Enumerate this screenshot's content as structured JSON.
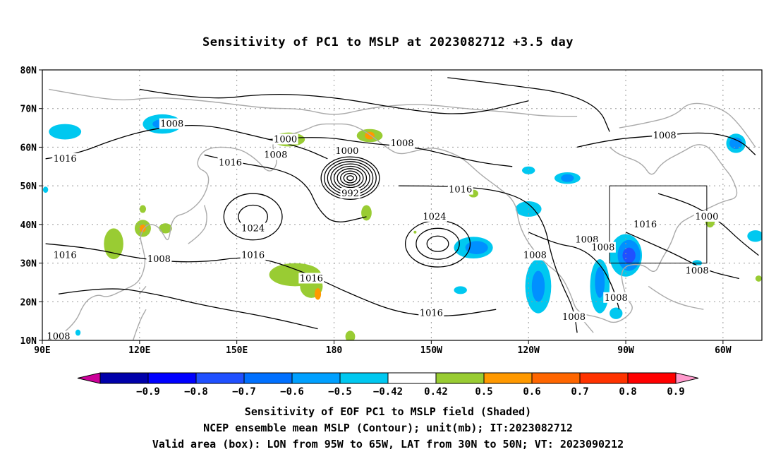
{
  "title": "Sensitivity of PC1 to MSLP at 2023082712 +3.5 day",
  "footer": {
    "line1": "Sensitivity of EOF PC1 to MSLP field (Shaded)",
    "line2": "NCEP ensemble mean MSLP (Contour); unit(mb); IT:2023082712",
    "line3": "Valid area (box): LON from 95W to 65W, LAT from 30N to 50N; VT: 2023090212"
  },
  "map": {
    "lon_range": [
      90,
      312
    ],
    "lat_range": [
      10,
      80
    ],
    "lat_ticks": [
      {
        "v": 80,
        "label": "80N"
      },
      {
        "v": 70,
        "label": "70N"
      },
      {
        "v": 60,
        "label": "60N"
      },
      {
        "v": 50,
        "label": "50N"
      },
      {
        "v": 40,
        "label": "40N"
      },
      {
        "v": 30,
        "label": "30N"
      },
      {
        "v": 20,
        "label": "20N"
      },
      {
        "v": 10,
        "label": "10N"
      }
    ],
    "lon_ticks": [
      {
        "v": 90,
        "label": "90E"
      },
      {
        "v": 120,
        "label": "120E"
      },
      {
        "v": 150,
        "label": "150E"
      },
      {
        "v": 180,
        "label": "180"
      },
      {
        "v": 210,
        "label": "150W"
      },
      {
        "v": 240,
        "label": "120W"
      },
      {
        "v": 270,
        "label": "90W"
      },
      {
        "v": 300,
        "label": "60W"
      }
    ],
    "valid_box": {
      "lon": [
        265,
        295
      ],
      "lat": [
        30,
        50
      ]
    },
    "contour_labels": [
      {
        "text": "1008",
        "lon": 130,
        "lat": 66
      },
      {
        "text": "1016",
        "lon": 97,
        "lat": 57
      },
      {
        "text": "1000",
        "lon": 165,
        "lat": 62
      },
      {
        "text": "1008",
        "lon": 162,
        "lat": 58
      },
      {
        "text": "1016",
        "lon": 148,
        "lat": 56
      },
      {
        "text": "1000",
        "lon": 184,
        "lat": 59
      },
      {
        "text": "992",
        "lon": 185,
        "lat": 48
      },
      {
        "text": "1008",
        "lon": 201,
        "lat": 61
      },
      {
        "text": "1016",
        "lon": 219,
        "lat": 49
      },
      {
        "text": "1024",
        "lon": 211,
        "lat": 42
      },
      {
        "text": "1024",
        "lon": 155,
        "lat": 39
      },
      {
        "text": "1016",
        "lon": 97,
        "lat": 32
      },
      {
        "text": "1008",
        "lon": 126,
        "lat": 31
      },
      {
        "text": "1016",
        "lon": 155,
        "lat": 32
      },
      {
        "text": "1016",
        "lon": 173,
        "lat": 26
      },
      {
        "text": "1016",
        "lon": 210,
        "lat": 17
      },
      {
        "text": "1008",
        "lon": 242,
        "lat": 32
      },
      {
        "text": "1008",
        "lon": 258,
        "lat": 36
      },
      {
        "text": "1008",
        "lon": 263,
        "lat": 34
      },
      {
        "text": "1016",
        "lon": 276,
        "lat": 40
      },
      {
        "text": "1008",
        "lon": 282,
        "lat": 63
      },
      {
        "text": "1000",
        "lon": 295,
        "lat": 42
      },
      {
        "text": "1008",
        "lon": 292,
        "lat": 28
      },
      {
        "text": "1008",
        "lon": 267,
        "lat": 21
      },
      {
        "text": "1008",
        "lon": 254,
        "lat": 16
      },
      {
        "text": "1008",
        "lon": 95,
        "lat": 11
      }
    ],
    "low_centers": [
      {
        "lon": 185,
        "lat": 52,
        "rings": 9,
        "rx": 9,
        "ry": 5.5
      }
    ],
    "high_centers": [
      {
        "lon": 155,
        "lat": 42,
        "rings": 2,
        "rx": 9,
        "ry": 6
      },
      {
        "lon": 212,
        "lat": 35,
        "rings": 3,
        "rx": 10,
        "ry": 6
      }
    ],
    "open_contours": [
      [
        [
          91,
          57
        ],
        [
          100,
          58
        ],
        [
          112,
          62
        ],
        [
          125,
          65
        ],
        [
          140,
          66
        ],
        [
          155,
          63
        ],
        [
          170,
          60
        ],
        [
          178,
          57
        ]
      ],
      [
        [
          91,
          35
        ],
        [
          105,
          34
        ],
        [
          120,
          31
        ],
        [
          138,
          30
        ],
        [
          155,
          32
        ],
        [
          170,
          28
        ],
        [
          185,
          22
        ],
        [
          200,
          17
        ],
        [
          215,
          16
        ],
        [
          230,
          18
        ]
      ],
      [
        [
          160,
          62
        ],
        [
          175,
          63
        ],
        [
          190,
          61
        ],
        [
          205,
          60
        ],
        [
          215,
          58
        ],
        [
          225,
          56
        ],
        [
          235,
          55
        ]
      ],
      [
        [
          140,
          58
        ],
        [
          150,
          56
        ],
        [
          165,
          54
        ],
        [
          172,
          50
        ],
        [
          175,
          44
        ],
        [
          180,
          40
        ],
        [
          190,
          42
        ]
      ],
      [
        [
          200,
          50
        ],
        [
          215,
          50
        ],
        [
          230,
          49
        ],
        [
          240,
          46
        ],
        [
          245,
          40
        ],
        [
          247,
          32
        ],
        [
          250,
          25
        ],
        [
          254,
          18
        ],
        [
          255,
          12
        ]
      ],
      [
        [
          255,
          60
        ],
        [
          265,
          62
        ],
        [
          280,
          63
        ],
        [
          295,
          64
        ],
        [
          305,
          62
        ],
        [
          310,
          58
        ]
      ],
      [
        [
          280,
          48
        ],
        [
          288,
          46
        ],
        [
          295,
          43
        ],
        [
          300,
          40
        ],
        [
          305,
          36
        ],
        [
          311,
          32
        ]
      ],
      [
        [
          270,
          38
        ],
        [
          278,
          35
        ],
        [
          286,
          32
        ],
        [
          295,
          28
        ],
        [
          305,
          26
        ]
      ],
      [
        [
          240,
          38
        ],
        [
          248,
          35
        ],
        [
          256,
          34
        ],
        [
          262,
          30
        ],
        [
          266,
          24
        ],
        [
          268,
          18
        ]
      ],
      [
        [
          120,
          75
        ],
        [
          140,
          72
        ],
        [
          160,
          74
        ],
        [
          180,
          73
        ],
        [
          200,
          70
        ],
        [
          220,
          68
        ],
        [
          240,
          72
        ]
      ],
      [
        [
          215,
          78
        ],
        [
          235,
          76
        ],
        [
          252,
          74
        ],
        [
          262,
          70
        ],
        [
          265,
          64
        ]
      ],
      [
        [
          95,
          22
        ],
        [
          110,
          24
        ],
        [
          125,
          22
        ],
        [
          140,
          19
        ],
        [
          160,
          16
        ],
        [
          175,
          13
        ]
      ]
    ],
    "shaded": [
      {
        "lon": 97,
        "lat": 64,
        "rx": 5,
        "ry": 2,
        "color": "#00c8f0"
      },
      {
        "lon": 127,
        "lat": 66,
        "rx": 6,
        "ry": 2.5,
        "color": "#00c8f0"
      },
      {
        "lon": 127,
        "lat": 66,
        "rx": 3,
        "ry": 1.2,
        "color": "#0090ff"
      },
      {
        "lon": 166,
        "lat": 62,
        "rx": 5,
        "ry": 1.8,
        "color": "#99cc33"
      },
      {
        "lon": 191,
        "lat": 63,
        "rx": 4,
        "ry": 1.7,
        "color": "#99cc33"
      },
      {
        "lon": 191,
        "lat": 63,
        "rx": 1.5,
        "ry": 1,
        "color": "#ff9900"
      },
      {
        "lon": 190,
        "lat": 43,
        "rx": 1.6,
        "ry": 2,
        "color": "#99cc33"
      },
      {
        "lon": 205,
        "lat": 38,
        "rx": 0.1,
        "ry": 0.1,
        "color": "#99cc33"
      },
      {
        "lon": 112,
        "lat": 35,
        "rx": 3,
        "ry": 4,
        "color": "#99cc33"
      },
      {
        "lon": 121,
        "lat": 39,
        "rx": 2.5,
        "ry": 2.2,
        "color": "#99cc33"
      },
      {
        "lon": 121,
        "lat": 39,
        "rx": 1,
        "ry": 1,
        "color": "#ff9900"
      },
      {
        "lon": 128,
        "lat": 39,
        "rx": 2,
        "ry": 1.3,
        "color": "#99cc33"
      },
      {
        "lon": 121,
        "lat": 44,
        "rx": 1,
        "ry": 1,
        "color": "#99cc33"
      },
      {
        "lon": 168,
        "lat": 27,
        "rx": 8,
        "ry": 3,
        "color": "#99cc33"
      },
      {
        "lon": 173,
        "lat": 24,
        "rx": 3.5,
        "ry": 3,
        "color": "#99cc33"
      },
      {
        "lon": 175,
        "lat": 22,
        "rx": 1,
        "ry": 1.5,
        "color": "#ff9900"
      },
      {
        "lon": 185,
        "lat": 11,
        "rx": 1.5,
        "ry": 1.5,
        "color": "#99cc33"
      },
      {
        "lon": 223,
        "lat": 34,
        "rx": 6,
        "ry": 2.8,
        "color": "#00c8f0"
      },
      {
        "lon": 224,
        "lat": 34,
        "rx": 3.5,
        "ry": 1.7,
        "color": "#0090ff"
      },
      {
        "lon": 219,
        "lat": 23,
        "rx": 2,
        "ry": 1,
        "color": "#00c8f0"
      },
      {
        "lon": 223,
        "lat": 48,
        "rx": 1.5,
        "ry": 1,
        "color": "#99cc33"
      },
      {
        "lon": 240,
        "lat": 54,
        "rx": 2,
        "ry": 1,
        "color": "#00c8f0"
      },
      {
        "lon": 240,
        "lat": 44,
        "rx": 4,
        "ry": 2,
        "color": "#00c8f0"
      },
      {
        "lon": 243,
        "lat": 24,
        "rx": 4,
        "ry": 7,
        "color": "#00c8f0"
      },
      {
        "lon": 243,
        "lat": 24,
        "rx": 2,
        "ry": 4,
        "color": "#0090ff"
      },
      {
        "lon": 252,
        "lat": 52,
        "rx": 4,
        "ry": 1.5,
        "color": "#00c8f0"
      },
      {
        "lon": 252,
        "lat": 52,
        "rx": 2,
        "ry": 1,
        "color": "#0090ff"
      },
      {
        "lon": 270,
        "lat": 32,
        "rx": 5,
        "ry": 5.5,
        "color": "#00c8f0"
      },
      {
        "lon": 271,
        "lat": 32,
        "rx": 3.5,
        "ry": 4,
        "color": "#0090ff"
      },
      {
        "lon": 271,
        "lat": 32,
        "rx": 2,
        "ry": 2,
        "color": "#2050ff"
      },
      {
        "lon": 262,
        "lat": 24,
        "rx": 3,
        "ry": 7,
        "color": "#00c8f0"
      },
      {
        "lon": 262,
        "lat": 25,
        "rx": 1.5,
        "ry": 4,
        "color": "#0090ff"
      },
      {
        "lon": 267,
        "lat": 17,
        "rx": 2,
        "ry": 1.5,
        "color": "#00c8f0"
      },
      {
        "lon": 304,
        "lat": 61,
        "rx": 3,
        "ry": 2.5,
        "color": "#00c8f0"
      },
      {
        "lon": 304,
        "lat": 61,
        "rx": 2,
        "ry": 1.5,
        "color": "#0090ff"
      },
      {
        "lon": 310,
        "lat": 37,
        "rx": 2.5,
        "ry": 1.5,
        "color": "#00c8f0"
      },
      {
        "lon": 296,
        "lat": 41,
        "rx": 1.5,
        "ry": 1.8,
        "color": "#99cc33"
      },
      {
        "lon": 292,
        "lat": 30,
        "rx": 1.5,
        "ry": 0.8,
        "color": "#00c8f0"
      },
      {
        "lon": 311,
        "lat": 26,
        "rx": 1,
        "ry": 0.8,
        "color": "#99cc33"
      },
      {
        "lon": 91,
        "lat": 49,
        "rx": 0.8,
        "ry": 0.8,
        "color": "#00c8f0"
      },
      {
        "lon": 101,
        "lat": 12,
        "rx": 0.8,
        "ry": 0.8,
        "color": "#00c8f0"
      }
    ],
    "coast": [
      [
        [
          95,
          11
        ],
        [
          100,
          14
        ],
        [
          103,
          20
        ],
        [
          107,
          22
        ],
        [
          110,
          21
        ],
        [
          115,
          23
        ],
        [
          120,
          25
        ],
        [
          122,
          30
        ],
        [
          121,
          34
        ],
        [
          120,
          37
        ],
        [
          122,
          40
        ],
        [
          125,
          40
        ],
        [
          127,
          38
        ],
        [
          129,
          35
        ],
        [
          130,
          42
        ],
        [
          135,
          43
        ],
        [
          140,
          47
        ],
        [
          142,
          53
        ],
        [
          137,
          55
        ],
        [
          140,
          60
        ],
        [
          150,
          60
        ],
        [
          156,
          57
        ],
        [
          160,
          53
        ],
        [
          163,
          56
        ],
        [
          160,
          62
        ],
        [
          170,
          64
        ],
        [
          175,
          66
        ],
        [
          180,
          66
        ],
        [
          185,
          66
        ],
        [
          190,
          64
        ],
        [
          196,
          60
        ],
        [
          200,
          58
        ],
        [
          205,
          59
        ],
        [
          210,
          60
        ],
        [
          215,
          59
        ],
        [
          220,
          57
        ],
        [
          225,
          53
        ],
        [
          230,
          50
        ],
        [
          236,
          46
        ],
        [
          237,
          40
        ],
        [
          240,
          35
        ],
        [
          245,
          30
        ],
        [
          250,
          27
        ],
        [
          253,
          22
        ],
        [
          255,
          17
        ],
        [
          262,
          16
        ],
        [
          267,
          14
        ],
        [
          273,
          18
        ],
        [
          270,
          21
        ],
        [
          268,
          29
        ],
        [
          275,
          30
        ],
        [
          279,
          27
        ],
        [
          281,
          31
        ],
        [
          284,
          35
        ],
        [
          286,
          40
        ],
        [
          290,
          42
        ],
        [
          295,
          44
        ],
        [
          300,
          46
        ],
        [
          305,
          47
        ],
        [
          303,
          52
        ],
        [
          300,
          55
        ],
        [
          296,
          60
        ],
        [
          292,
          61
        ],
        [
          288,
          59
        ],
        [
          281,
          56
        ],
        [
          278,
          52
        ],
        [
          275,
          56
        ],
        [
          268,
          58
        ],
        [
          265,
          60
        ]
      ],
      [
        [
          268,
          65
        ],
        [
          275,
          66
        ],
        [
          285,
          68
        ],
        [
          290,
          72
        ],
        [
          300,
          70
        ],
        [
          305,
          66
        ],
        [
          310,
          60
        ]
      ],
      [
        [
          92,
          75
        ],
        [
          105,
          73
        ],
        [
          115,
          72
        ],
        [
          125,
          73
        ],
        [
          140,
          72
        ],
        [
          150,
          71
        ],
        [
          160,
          70
        ],
        [
          170,
          70
        ],
        [
          180,
          68
        ],
        [
          190,
          70
        ],
        [
          200,
          71
        ],
        [
          210,
          71
        ],
        [
          220,
          70
        ],
        [
          235,
          69
        ],
        [
          245,
          68
        ],
        [
          255,
          68
        ]
      ],
      [
        [
          135,
          35
        ],
        [
          140,
          38
        ],
        [
          141,
          42
        ],
        [
          140,
          45
        ]
      ],
      [
        [
          120,
          22
        ],
        [
          122,
          24
        ]
      ],
      [
        [
          118,
          10
        ],
        [
          120,
          15
        ],
        [
          122,
          18
        ]
      ],
      [
        [
          277,
          24
        ],
        [
          282,
          21
        ],
        [
          288,
          19
        ],
        [
          294,
          18
        ]
      ],
      [
        [
          255,
          17
        ],
        [
          260,
          12
        ]
      ]
    ]
  },
  "colorbar": {
    "colors": [
      "#cc0099",
      "#0000aa",
      "#0000ff",
      "#2050ff",
      "#0070ff",
      "#00a0ff",
      "#00c8f0",
      "#ffffff",
      "#99cc33",
      "#ff9900",
      "#ff6600",
      "#ff3300",
      "#ff0000",
      "#ff99cc"
    ],
    "labels": [
      "−0.9",
      "−0.8",
      "−0.7",
      "−0.6",
      "−0.5",
      "−0.42",
      "0.42",
      "0.5",
      "0.6",
      "0.7",
      "0.8",
      "0.9"
    ]
  }
}
